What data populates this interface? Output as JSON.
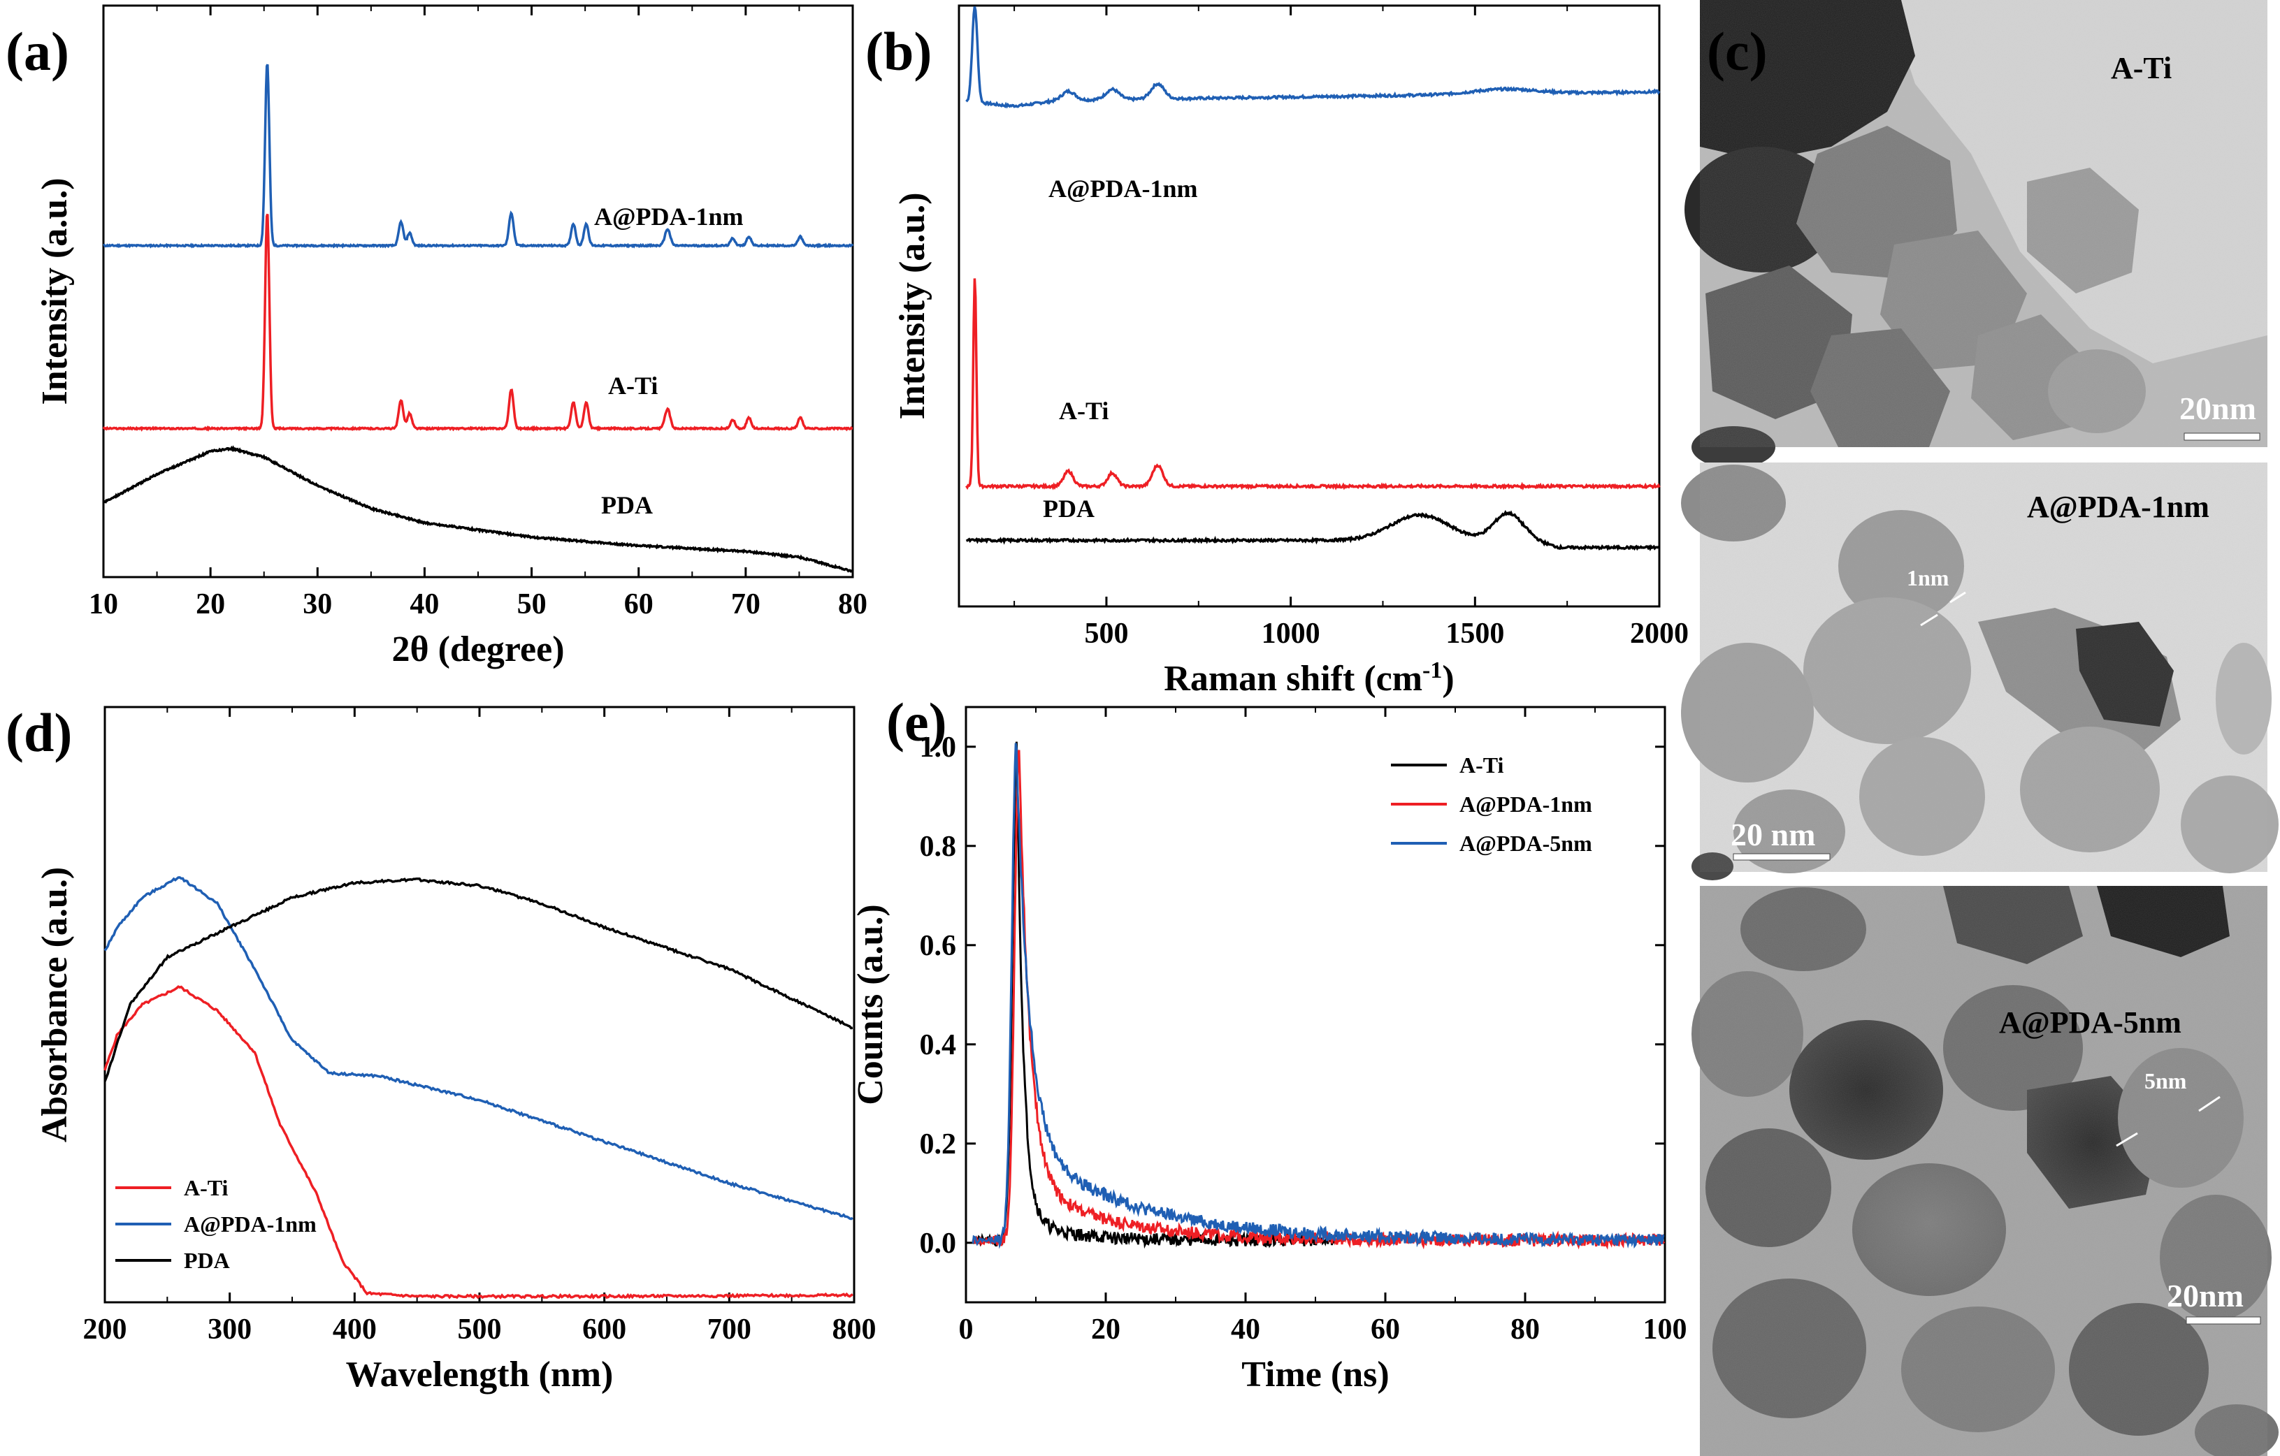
{
  "panels": {
    "a": "(a)",
    "b": "(b)",
    "c": "(c)",
    "d": "(d)",
    "e": "(e)"
  },
  "colors": {
    "red": "#ee1f24",
    "blue": "#1f5fb4",
    "black": "#000000"
  },
  "chart_data": [
    {
      "id": "a",
      "type": "line",
      "xlabel": "2θ (degree)",
      "ylabel": "Intensity (a.u.)",
      "xlim": [
        10,
        80
      ],
      "ylim": [
        0,
        10
      ],
      "xticks": [
        10,
        20,
        30,
        40,
        50,
        60,
        70,
        80
      ],
      "yticks": [],
      "peaks": [
        {
          "x": 25.3,
          "h": 1.0,
          "w": 0.28
        },
        {
          "x": 37.8,
          "h": 0.13,
          "w": 0.3
        },
        {
          "x": 38.6,
          "h": 0.07,
          "w": 0.3
        },
        {
          "x": 48.1,
          "h": 0.18,
          "w": 0.3
        },
        {
          "x": 53.9,
          "h": 0.12,
          "w": 0.3
        },
        {
          "x": 55.1,
          "h": 0.12,
          "w": 0.3
        },
        {
          "x": 62.7,
          "h": 0.09,
          "w": 0.35
        },
        {
          "x": 68.8,
          "h": 0.04,
          "w": 0.3
        },
        {
          "x": 70.3,
          "h": 0.05,
          "w": 0.3
        },
        {
          "x": 75.1,
          "h": 0.05,
          "w": 0.3
        }
      ],
      "series": [
        {
          "name": "A@PDA-1nm",
          "color": "#1f5fb4",
          "baseline": 5.8,
          "scale": 3.2
        },
        {
          "name": "A-Ti",
          "color": "#ee1f24",
          "baseline": 2.6,
          "scale": 3.8
        },
        {
          "name": "PDA",
          "color": "#000000",
          "points": [
            [
              10,
              1.3
            ],
            [
              15,
              1.8
            ],
            [
              20,
              2.2
            ],
            [
              22,
              2.25
            ],
            [
              25,
              2.1
            ],
            [
              30,
              1.6
            ],
            [
              35,
              1.2
            ],
            [
              40,
              0.95
            ],
            [
              50,
              0.7
            ],
            [
              60,
              0.55
            ],
            [
              70,
              0.45
            ],
            [
              75,
              0.35
            ],
            [
              80,
              0.1
            ]
          ]
        }
      ]
    },
    {
      "id": "b",
      "type": "line",
      "xlabel": "Raman shift (cm",
      "xlabel_sup": "-1",
      "xlabel_end": ")",
      "ylabel": "Intensity (a.u.)",
      "xlim": [
        100,
        2000
      ],
      "ylim": [
        0,
        10
      ],
      "xticks": [
        500,
        1000,
        1500,
        2000
      ],
      "yticks": [],
      "series": [
        {
          "name": "A@PDA-1nm",
          "color": "#1f5fb4"
        },
        {
          "name": "A-Ti",
          "color": "#ee1f24"
        },
        {
          "name": "PDA",
          "color": "#000000"
        }
      ]
    },
    {
      "id": "d",
      "type": "line",
      "xlabel": "Wavelength (nm)",
      "ylabel": "Absorbance (a.u.)",
      "xlim": [
        200,
        800
      ],
      "ylim": [
        0,
        1.0
      ],
      "xticks": [
        200,
        300,
        400,
        500,
        600,
        700,
        800
      ],
      "yticks": [],
      "legend": "bottom-left",
      "series": [
        {
          "name": "A-Ti",
          "color": "#ee1f24",
          "points": [
            [
              200,
              0.39
            ],
            [
              210,
              0.45
            ],
            [
              230,
              0.5
            ],
            [
              260,
              0.53
            ],
            [
              290,
              0.49
            ],
            [
              320,
              0.42
            ],
            [
              340,
              0.3
            ],
            [
              370,
              0.18
            ],
            [
              390,
              0.07
            ],
            [
              410,
              0.015
            ],
            [
              450,
              0.01
            ],
            [
              600,
              0.01
            ],
            [
              800,
              0.012
            ]
          ]
        },
        {
          "name": "A@PDA-1nm",
          "color": "#1f5fb4",
          "points": [
            [
              200,
              0.59
            ],
            [
              210,
              0.63
            ],
            [
              230,
              0.68
            ],
            [
              260,
              0.715
            ],
            [
              290,
              0.67
            ],
            [
              320,
              0.56
            ],
            [
              350,
              0.44
            ],
            [
              380,
              0.385
            ],
            [
              420,
              0.38
            ],
            [
              500,
              0.34
            ],
            [
              600,
              0.27
            ],
            [
              700,
              0.2
            ],
            [
              800,
              0.14
            ]
          ]
        },
        {
          "name": "PDA",
          "color": "#000000",
          "points": [
            [
              200,
              0.37
            ],
            [
              220,
              0.5
            ],
            [
              250,
              0.58
            ],
            [
              300,
              0.63
            ],
            [
              350,
              0.68
            ],
            [
              400,
              0.705
            ],
            [
              450,
              0.71
            ],
            [
              500,
              0.7
            ],
            [
              550,
              0.67
            ],
            [
              600,
              0.63
            ],
            [
              700,
              0.56
            ],
            [
              800,
              0.46
            ]
          ]
        }
      ]
    },
    {
      "id": "e",
      "type": "line",
      "xlabel": "Time (ns)",
      "ylabel": "Counts (a.u.)",
      "xlim": [
        0,
        100
      ],
      "ylim": [
        -0.12,
        1.08
      ],
      "xticks": [
        0,
        20,
        40,
        60,
        80,
        100
      ],
      "yticks": [
        0.0,
        0.2,
        0.4,
        0.6,
        0.8,
        1.0
      ],
      "ytick_labels": [
        "0.0",
        "0.2",
        "0.4",
        "0.6",
        "0.8",
        "1.0"
      ],
      "legend": "top-right",
      "series": [
        {
          "name": "A-Ti",
          "color": "#000000",
          "peak_x": 7.3,
          "tau": 0.9,
          "tail": 0.05,
          "tau2": 6,
          "end_x": 53
        },
        {
          "name": "A@PDA-1nm",
          "color": "#ee1f24",
          "peak_x": 7.6,
          "tau": 1.5,
          "tail": 0.12,
          "tau2": 12,
          "end_x": 100
        },
        {
          "name": "A@PDA-5nm",
          "color": "#1f5fb4",
          "peak_x": 7.2,
          "tau": 1.8,
          "tail": 0.2,
          "tau2": 16,
          "end_x": 100
        }
      ]
    }
  ],
  "tem": [
    {
      "label": "A-Ti",
      "scale_bar": "20nm"
    },
    {
      "label": "A@PDA-1nm",
      "scale_bar": "20 nm",
      "annotation": "1nm"
    },
    {
      "label": "A@PDA-5nm",
      "scale_bar": "20nm",
      "annotation": "5nm"
    }
  ]
}
